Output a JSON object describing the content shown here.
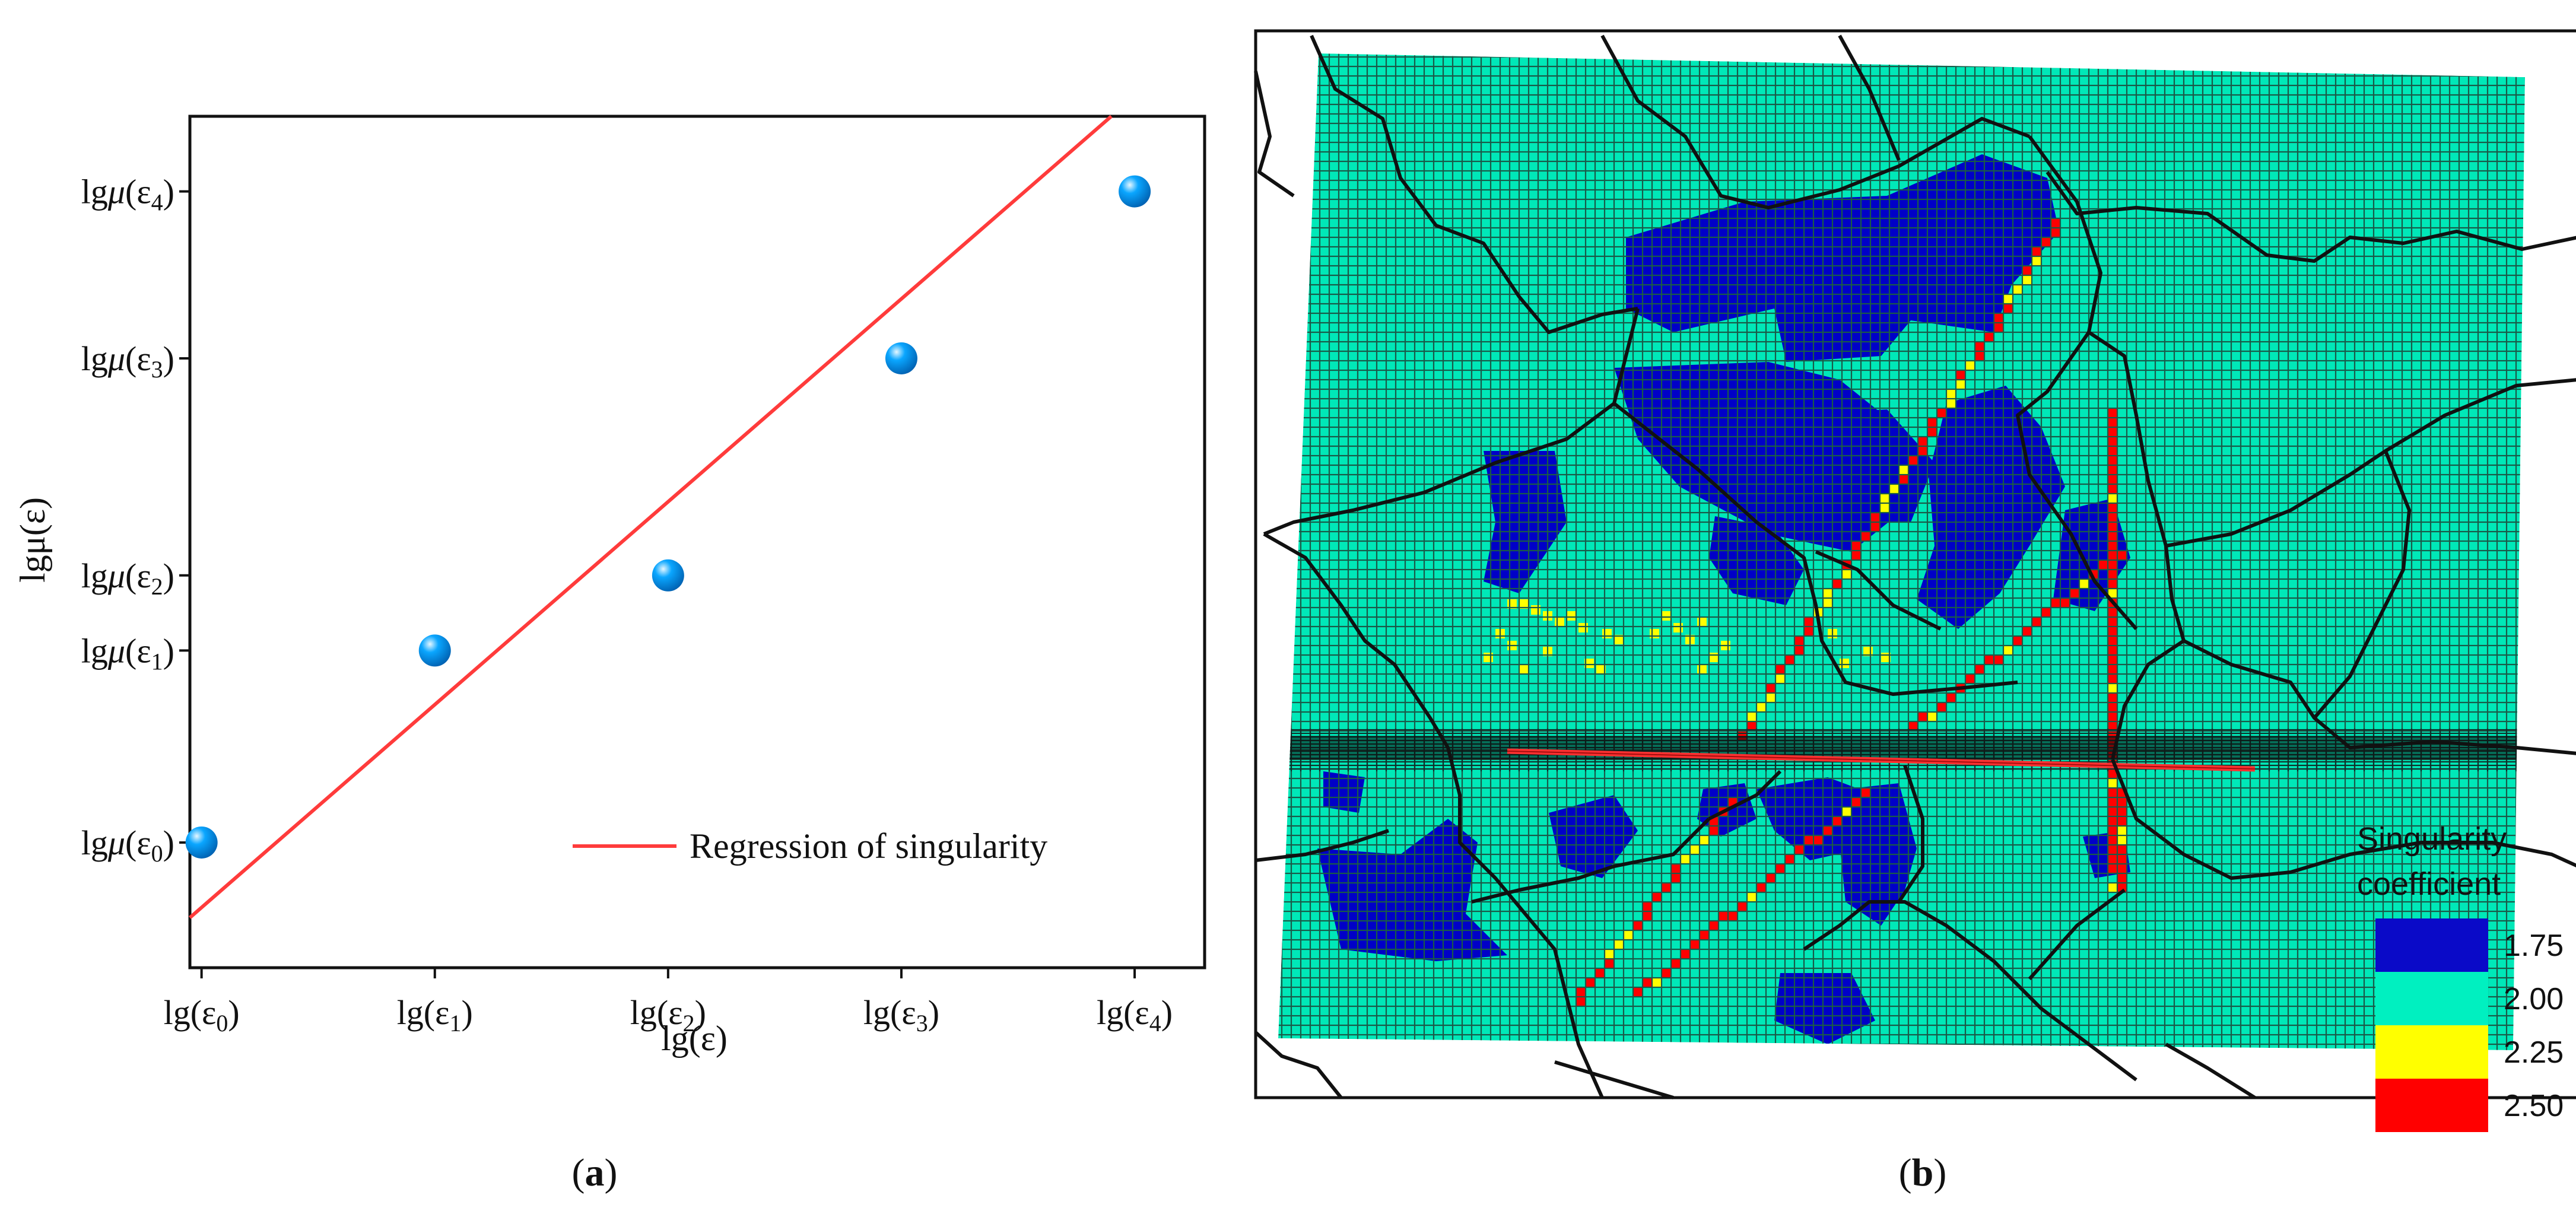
{
  "figure": {
    "caption_a": "a",
    "caption_b": "b"
  },
  "chart_data": [
    {
      "type": "scatter",
      "panel": "a",
      "categories": [
        "lg(ε0)",
        "lg(ε1)",
        "lg(ε2)",
        "lg(ε3)",
        "lg(ε4)"
      ],
      "x_ticks": [
        {
          "base": "lg(ε",
          "sub": "0",
          "close": ")"
        },
        {
          "base": "lg(ε",
          "sub": "1",
          "close": ")"
        },
        {
          "base": "lg(ε",
          "sub": "2",
          "close": ")"
        },
        {
          "base": "lg(ε",
          "sub": "3",
          "close": ")"
        },
        {
          "base": "lg(ε",
          "sub": "4",
          "close": ")"
        }
      ],
      "y_ticks": [
        {
          "pre": "lg",
          "mu": "μ",
          "open": "(ε",
          "sub": "0",
          "close": ")",
          "level": 0.2
        },
        {
          "pre": "lg",
          "mu": "μ",
          "open": "(ε",
          "sub": "1",
          "close": ")",
          "level": 0.43
        },
        {
          "pre": "lg",
          "mu": "μ",
          "open": "(ε",
          "sub": "2",
          "close": ")",
          "level": 0.52
        },
        {
          "pre": "lg",
          "mu": "μ",
          "open": "(ε",
          "sub": "3",
          "close": ")",
          "level": 0.78
        },
        {
          "pre": "lg",
          "mu": "μ",
          "open": "(ε",
          "sub": "4",
          "close": ")",
          "level": 0.98
        }
      ],
      "points": [
        {
          "x": 0,
          "y": 0.2
        },
        {
          "x": 1,
          "y": 0.43
        },
        {
          "x": 2,
          "y": 0.52
        },
        {
          "x": 3,
          "y": 0.78
        },
        {
          "x": 4,
          "y": 0.98
        }
      ],
      "regression": {
        "x0": -0.05,
        "y0": 0.11,
        "x1": 3.9,
        "y1": 1.07,
        "color": "#ff3b3b"
      },
      "xlim": [
        -0.05,
        4.3
      ],
      "ylim": [
        0.05,
        1.07
      ],
      "xlabel": "lg(ε)",
      "ylabel": "lgμ(ε)",
      "legend": {
        "label": "Regression of singularity",
        "placement": "bottom-right"
      },
      "colors": {
        "points": "#0aa6ff",
        "line": "#ff3b3b"
      }
    },
    {
      "type": "heatmap",
      "panel": "b",
      "description_colors": {
        "1.75": "#0000c8",
        "2.00": "#00e8b8",
        "2.25": "#ffff00",
        "2.50": "#ff0000"
      },
      "colorbar": {
        "title_line1": "Singularity",
        "title_line2": "coefficient",
        "levels": [
          {
            "label": "1.75",
            "color": "#0a0ac8"
          },
          {
            "label": "2.00",
            "color": "#00f0c0"
          },
          {
            "label": "2.25",
            "color": "#ffff00"
          },
          {
            "label": "2.50",
            "color": "#ff0000"
          }
        ]
      }
    }
  ]
}
